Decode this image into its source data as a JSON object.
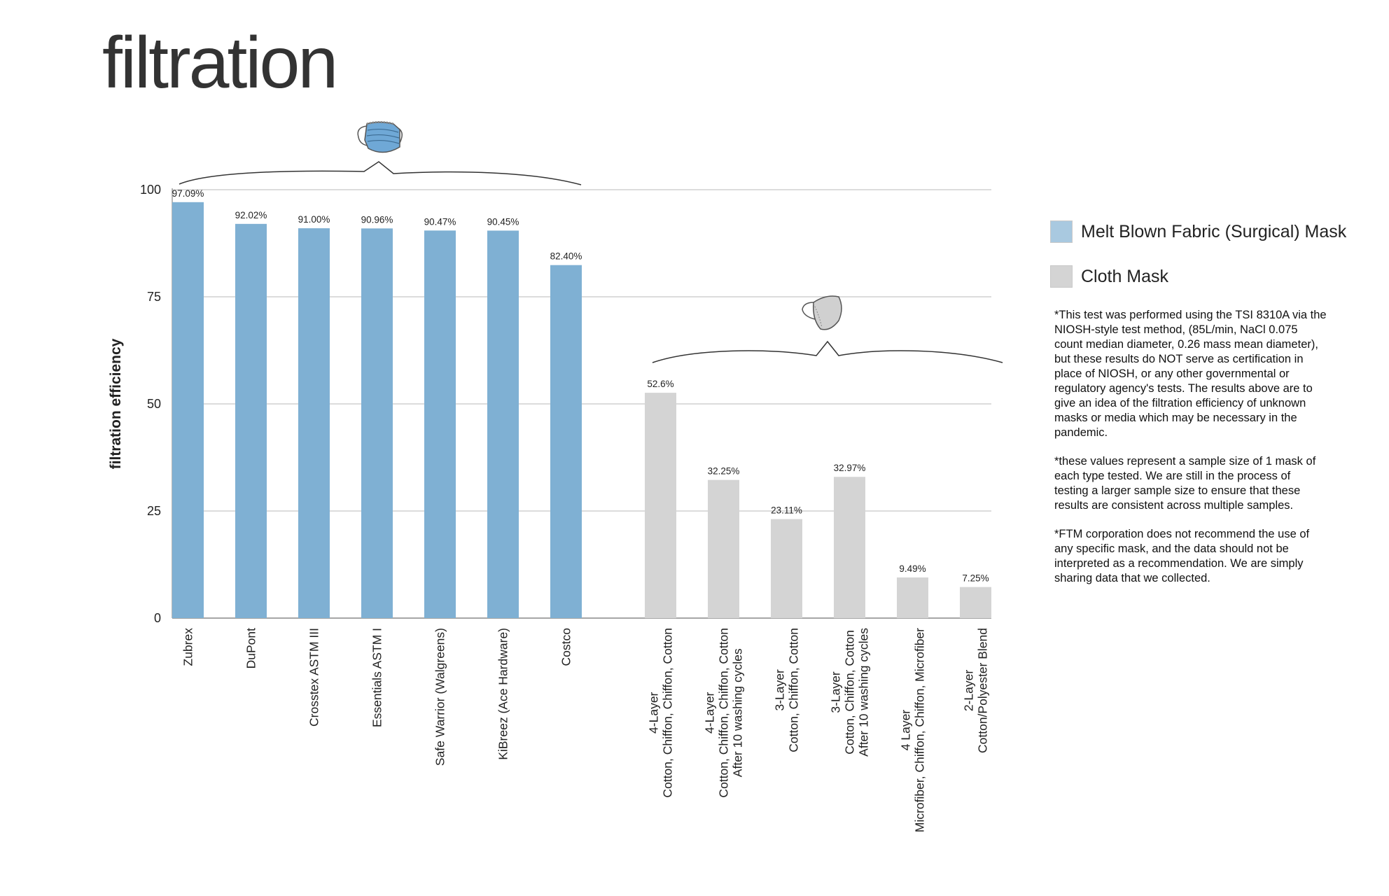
{
  "page_title": "filtration",
  "colors": {
    "surgical": "#7fb0d3",
    "cloth": "#d4d4d4",
    "grid": "#c8c8c8",
    "axis": "#888888"
  },
  "icons": [
    "surgical-mask-icon",
    "cloth-mask-icon"
  ],
  "legend": [
    {
      "label": "Melt Blown Fabric (Surgical) Mask",
      "color": "#a9c9e0"
    },
    {
      "label": "Cloth Mask",
      "color": "#d4d4d4"
    }
  ],
  "notes": [
    "*This test was performed using the TSI 8310A via the NIOSH-style test method, (85L/min, NaCl 0.075 count median diameter, 0.26 mass mean diameter), but these results do NOT serve as certification in place of NIOSH, or any other governmental or regulatory agency's tests. The results above are to give an idea of the filtration efficiency of unknown masks or media which may be necessary in the pandemic.",
    "*these values represent a sample size of 1 mask of each type tested. We are still in the process of testing a larger sample size to ensure that these results are consistent across multiple samples.",
    "*FTM corporation does not recommend the use of any specific mask, and the data should not be interpreted as a recommendation. We are simply sharing data that we collected."
  ],
  "chart_data": {
    "type": "bar",
    "title": "",
    "xlabel": "",
    "ylabel": "filtration efficiency",
    "ylim": [
      0,
      100
    ],
    "yticks": [
      0,
      25,
      50,
      75,
      100
    ],
    "grid": true,
    "legend_position": "right",
    "groups": [
      {
        "name": "Melt Blown Fabric (Surgical) Mask",
        "color": "#7fb0d3",
        "bars": [
          {
            "label": [
              "Zubrex"
            ],
            "value": 97.09,
            "value_label": "97.09%"
          },
          {
            "label": [
              "DuPont"
            ],
            "value": 92.02,
            "value_label": "92.02%"
          },
          {
            "label": [
              "Crosstex ASTM III"
            ],
            "value": 91.0,
            "value_label": "91.00%"
          },
          {
            "label": [
              "Essentials ASTM I"
            ],
            "value": 90.96,
            "value_label": "90.96%"
          },
          {
            "label": [
              "Safe Warrior (Walgreens)"
            ],
            "value": 90.47,
            "value_label": "90.47%"
          },
          {
            "label": [
              "KiBreez (Ace Hardware)"
            ],
            "value": 90.45,
            "value_label": "90.45%"
          },
          {
            "label": [
              "Costco"
            ],
            "value": 82.4,
            "value_label": "82.40%"
          }
        ]
      },
      {
        "name": "Cloth Mask",
        "color": "#d4d4d4",
        "bars": [
          {
            "label": [
              "4-Layer",
              "Cotton, Chiffon, Chiffon, Cotton"
            ],
            "value": 52.6,
            "value_label": "52.6%"
          },
          {
            "label": [
              "4-Layer",
              "Cotton, Chiffon, Chiffon, Cotton",
              "After 10 washing cycles"
            ],
            "value": 32.25,
            "value_label": "32.25%"
          },
          {
            "label": [
              "3-Layer",
              "Cotton, Chiffon, Cotton"
            ],
            "value": 23.11,
            "value_label": "23.11%"
          },
          {
            "label": [
              "3-Layer",
              "Cotton, Chiffon, Cotton",
              "After 10 washing cycles"
            ],
            "value": 32.97,
            "value_label": "32.97%"
          },
          {
            "label": [
              "4 Layer",
              "Microfiber, Chiffon, Chiffon, Microfiber"
            ],
            "value": 9.49,
            "value_label": "9.49%"
          },
          {
            "label": [
              "2-Layer",
              "Cotton/Polyester Blend"
            ],
            "value": 7.25,
            "value_label": "7.25%"
          }
        ]
      }
    ]
  }
}
